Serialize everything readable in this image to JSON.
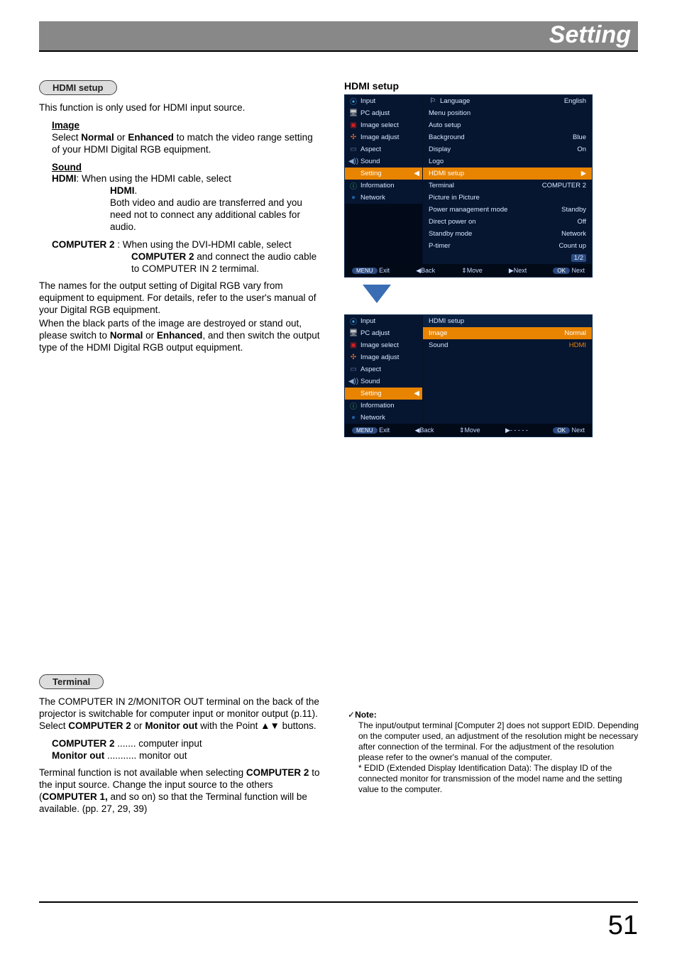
{
  "header": "Setting",
  "page_number": "51",
  "hdmi_setup_pill": "HDMI setup",
  "terminal_pill": "Terminal",
  "hdmi_setup_label": "HDMI setup",
  "text": {
    "hdmi_intro": "This function is only used for HDMI input source.",
    "image_head": "Image",
    "image_body_a": "Select ",
    "image_body_b": "Normal",
    "image_body_c": " or ",
    "image_body_d": "Enhanced",
    "image_body_e": " to match the video range setting of your HDMI Digital RGB equipment.",
    "sound_head": "Sound",
    "hdmi_key": "HDMI",
    "hdmi_line1": ": When using the HDMI cable, select ",
    "hdmi_line1b": "HDMI",
    "hdmi_line1c": ".",
    "hdmi_line2": "Both video and audio are transferred and you need not to connect any additional cables for audio.",
    "comp2_key": "COMPUTER 2",
    "comp2_line1": " : When using the DVI-HDMI cable, select ",
    "comp2_line1b": "COMPUTER 2",
    "comp2_line1c": " and connect the audio cable to COMPUTER IN 2 termimal.",
    "names_para": "The names for the output setting of Digital RGB vary from equipment to equipment. For details, refer to the user's manual of your Digital RGB equipment.",
    "black_a": "When the black parts of the image are destroyed or stand out, please switch to ",
    "black_b": "Normal",
    "black_c": " or ",
    "black_d": "Enhanced",
    "black_e": ", and then switch the output type of the HDMI Digital RGB output equipment.",
    "term_a": "The COMPUTER IN 2/MONITOR OUT terminal on the back of the projector is switchable for computer input or monitor output (p.11). Select ",
    "term_b": "COMPUTER 2",
    "term_c": " or ",
    "term_d": "Monitor out",
    "term_e": " with the Point ▲▼ buttons.",
    "term_list1_a": "COMPUTER 2",
    "term_list1_b": " ....... computer input",
    "term_list2_a": "Monitor out",
    "term_list2_b": " ........... monitor out",
    "term_para2_a": "Terminal function is not available when selecting ",
    "term_para2_b": "COMPUTER 2",
    "term_para2_c": " to the input source. Change the input source to the others (",
    "term_para2_d": "COMPUTER 1,",
    "term_para2_e": " and so on) so that the Terminal function will be available. (pp. 27, 29, 39)",
    "note_head": "Note:",
    "note_body": "The input/output terminal [Computer 2] does not support EDID. Depending on the computer used, an adjustment of the resolution might be necessary after connection of the terminal. For the adjustment of the resolution please refer to the owner's manual of the computer.",
    "note_star": "* EDID (Extended Display Identification Data): The display ID of the connected monitor for transmission of the model name and the setting value to the computer."
  },
  "osd": {
    "sidebar": [
      {
        "icon": "⦿",
        "icon_color": "#3aa0e0",
        "label": "Input"
      },
      {
        "icon": "🖥",
        "icon_color": "#c8c8c8",
        "label": "PC adjust"
      },
      {
        "icon": "▣",
        "icon_color": "#d02020",
        "label": "Image select"
      },
      {
        "icon": "✣",
        "icon_color": "#e07030",
        "label": "Image adjust"
      },
      {
        "icon": "▭",
        "icon_color": "#6080b0",
        "label": "Aspect"
      },
      {
        "icon": "◀))",
        "icon_color": "#8aa8d0",
        "label": "Sound"
      },
      {
        "icon": "⚙",
        "icon_color": "#e88400",
        "label": "Setting"
      },
      {
        "icon": "ⓘ",
        "icon_color": "#40b060",
        "label": "Information"
      },
      {
        "icon": "●",
        "icon_color": "#2060a0",
        "label": "Network"
      }
    ],
    "main1": [
      {
        "icon": "⚐",
        "left": "Language",
        "right": "English"
      },
      {
        "left": "Menu position",
        "right": ""
      },
      {
        "left": "Auto setup",
        "right": ""
      },
      {
        "left": "Background",
        "right": "Blue"
      },
      {
        "left": "Display",
        "right": "On"
      },
      {
        "left": "Logo",
        "right": ""
      },
      {
        "left": "HDMI setup",
        "right": "▶",
        "hi": true
      },
      {
        "left": "Terminal",
        "right": "COMPUTER 2"
      },
      {
        "left": "Picture in Picture",
        "right": ""
      },
      {
        "left": "Power management mode",
        "right": "Standby"
      },
      {
        "left": "Direct power on",
        "right": "Off"
      },
      {
        "left": "Standby mode",
        "right": "Network"
      },
      {
        "left": "P-timer",
        "right": "Count up"
      },
      {
        "left": "",
        "right": "1/2"
      }
    ],
    "main2_title": "HDMI setup",
    "main2": [
      {
        "left": "Image",
        "right": "Normal",
        "hi": true
      },
      {
        "left": "Sound",
        "right": "HDMI"
      }
    ],
    "footer": {
      "exit_key": "MENU",
      "exit": "Exit",
      "back_sym": "◀",
      "back": "Back",
      "move_sym": "⇕",
      "move": "Move",
      "next_sym": "▶",
      "next": "Next",
      "next2": "- - - - -",
      "ok_key": "OK",
      "ok": "Next"
    }
  }
}
